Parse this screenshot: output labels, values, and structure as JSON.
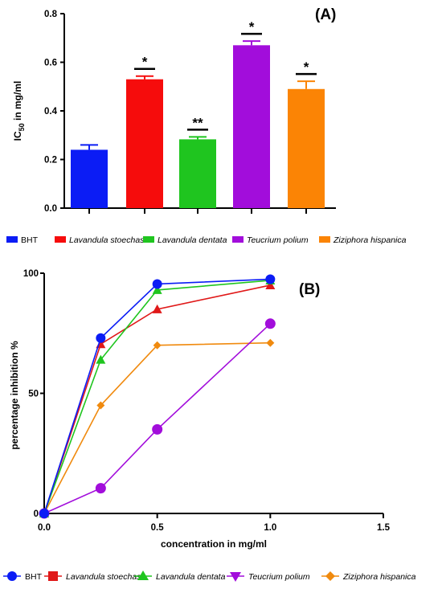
{
  "chart_data": [
    {
      "type": "bar",
      "panel_label": "(A)",
      "ylabel": "IC50 in mg/ml",
      "ylim": [
        0,
        0.8
      ],
      "yticks": [
        "0.0",
        "0.2",
        "0.4",
        "0.6",
        "0.8"
      ],
      "categories": [
        "BHT",
        "Lavandula stoechas",
        "Lavandula dentata",
        "Teucrium polium",
        "Ziziphora hispanica"
      ],
      "values": [
        0.24,
        0.53,
        0.283,
        0.67,
        0.49
      ],
      "errors": [
        0.02,
        0.013,
        0.01,
        0.017,
        0.032
      ],
      "colors": [
        "#0b1cf5",
        "#f60c0c",
        "#1fc51f",
        "#a20ddb",
        "#fb8405"
      ],
      "significance": [
        "",
        "*",
        "**",
        "*",
        "*"
      ],
      "legend_placement": "bottom"
    },
    {
      "type": "line",
      "panel_label": "(B)",
      "xlabel": "concentration in mg/ml",
      "ylabel": "percentage inhibition %",
      "xlim": [
        0,
        1.5
      ],
      "ylim": [
        0,
        100
      ],
      "xticks": [
        "0.0",
        "0.5",
        "1.0",
        "1.5"
      ],
      "yticks": [
        "0",
        "50",
        "100"
      ],
      "x": [
        0,
        0.25,
        0.5,
        1.0
      ],
      "series": [
        {
          "name": "BHT",
          "values": [
            0,
            73,
            95.5,
            97.5
          ],
          "color": "#0b1cf5",
          "marker": "circle"
        },
        {
          "name": "Lavandula stoechas",
          "values": [
            0,
            70.5,
            85,
            95
          ],
          "color": "#e01818",
          "marker": "square"
        },
        {
          "name": "Lavandula dentata",
          "values": [
            0,
            64,
            93,
            97
          ],
          "color": "#1fc51f",
          "marker": "triangle-up"
        },
        {
          "name": "Teucrium polium",
          "values": [
            0,
            10.5,
            35,
            79
          ],
          "color": "#a20ddb",
          "marker": "triangle-down"
        },
        {
          "name": "Ziziphora hispanica",
          "values": [
            0,
            45,
            70,
            71
          ],
          "color": "#f08a0e",
          "marker": "diamond"
        }
      ],
      "legend_placement": "bottom"
    }
  ]
}
